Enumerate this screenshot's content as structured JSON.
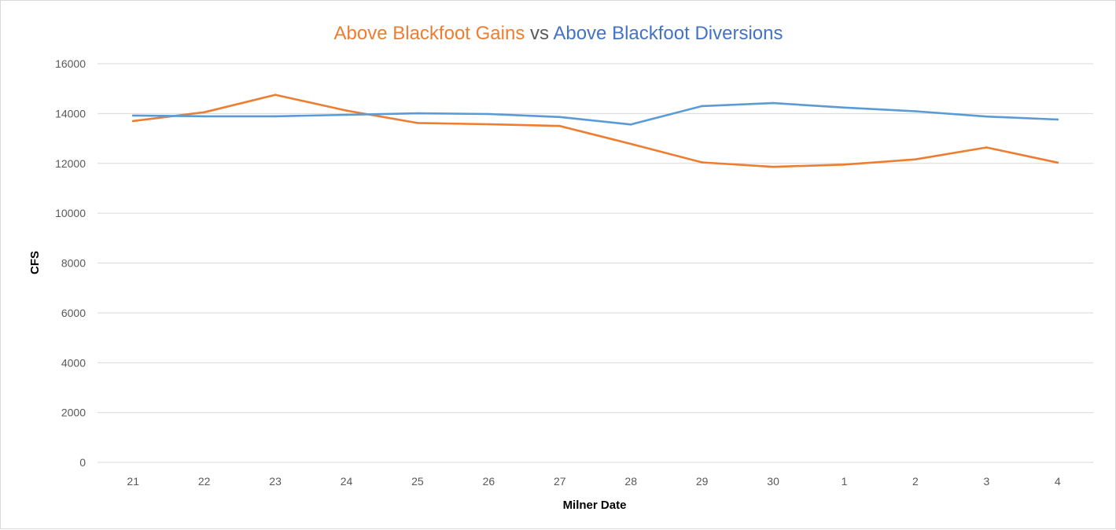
{
  "chart_data": {
    "type": "line",
    "title_parts": [
      {
        "text": "Above Blackfoot Gains",
        "color": "#ed7d31"
      },
      {
        "text": " vs ",
        "color": "#595959"
      },
      {
        "text": "Above Blackfoot Diversions",
        "color": "#4472c4"
      }
    ],
    "xlabel": "Milner Date",
    "ylabel": "CFS",
    "categories": [
      "21",
      "22",
      "23",
      "24",
      "25",
      "26",
      "27",
      "28",
      "29",
      "30",
      "1",
      "2",
      "3",
      "4"
    ],
    "ylim": [
      0,
      16000
    ],
    "yticks": [
      0,
      2000,
      4000,
      6000,
      8000,
      10000,
      12000,
      14000,
      16000
    ],
    "grid": true,
    "legend": "none",
    "series": [
      {
        "color": "#ed7d31",
        "values": [
          13700,
          14050,
          14750,
          14120,
          13620,
          13570,
          13500,
          12780,
          12040,
          11860,
          11950,
          12160,
          12640,
          12030
        ]
      },
      {
        "color": "#5b9bd5",
        "values": [
          13920,
          13890,
          13890,
          13950,
          14010,
          13980,
          13860,
          13560,
          14300,
          14420,
          14240,
          14090,
          13880,
          13760
        ]
      }
    ]
  }
}
